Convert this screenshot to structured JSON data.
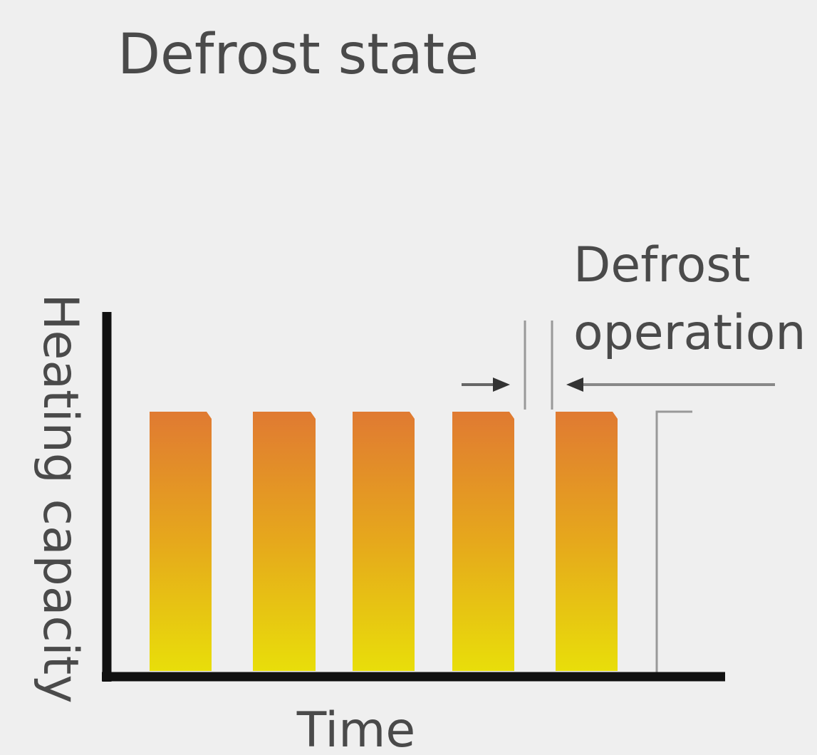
{
  "title": "Defrost state",
  "annotation": {
    "lines": [
      "Defrost",
      "operation"
    ]
  },
  "axes": {
    "y_label": "Heating capacity",
    "x_label": "Time"
  }
}
